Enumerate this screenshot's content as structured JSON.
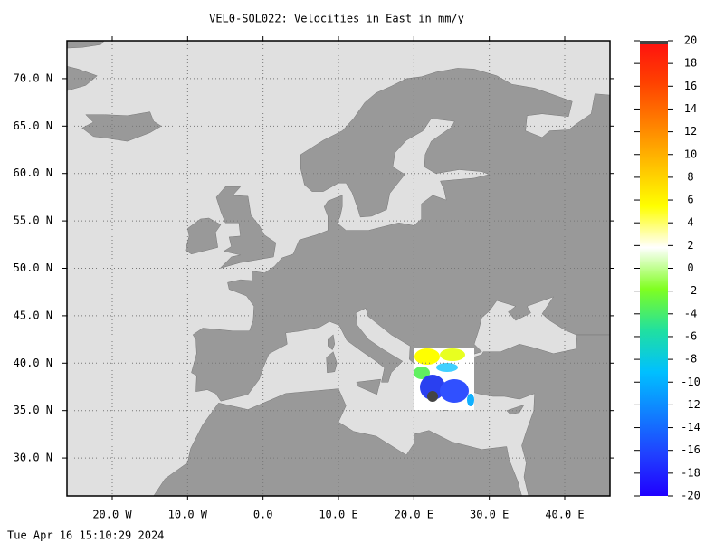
{
  "title": "VEL0-SOL022: Velocities in East in mm/y",
  "map": {
    "xlim": [
      -26,
      46
    ],
    "ylim": [
      26,
      74
    ],
    "xticks": [
      {
        "value": -20,
        "label": "20.0 W"
      },
      {
        "value": -10,
        "label": "10.0 W"
      },
      {
        "value": 0,
        "label": "0.0"
      },
      {
        "value": 10,
        "label": "10.0 E"
      },
      {
        "value": 20,
        "label": "20.0 E"
      },
      {
        "value": 30,
        "label": "30.0 E"
      },
      {
        "value": 40,
        "label": "40.0 E"
      }
    ],
    "yticks": [
      {
        "value": 30,
        "label": "30.0 N"
      },
      {
        "value": 35,
        "label": "35.0 N"
      },
      {
        "value": 40,
        "label": "40.0 N"
      },
      {
        "value": 45,
        "label": "45.0 N"
      },
      {
        "value": 50,
        "label": "50.0 N"
      },
      {
        "value": 55,
        "label": "55.0 N"
      },
      {
        "value": 60,
        "label": "60.0 N"
      },
      {
        "value": 65,
        "label": "65.0 N"
      },
      {
        "value": 70,
        "label": "70.0 N"
      }
    ],
    "grid": true,
    "land_color": "#999999",
    "sea_color": "#e0e0e0"
  },
  "colorbar": {
    "range": [
      -20,
      20
    ],
    "ticks": [
      20,
      18,
      16,
      14,
      12,
      10,
      8,
      6,
      4,
      2,
      0,
      -2,
      -4,
      -6,
      -8,
      -10,
      -12,
      -14,
      -16,
      -18,
      -20
    ],
    "colors": [
      "#2000ff",
      "#2040ff",
      "#1080ff",
      "#00c0ff",
      "#20e0a0",
      "#80ff20",
      "#ffffff",
      "#ffff00",
      "#ffc000",
      "#ff8000",
      "#ff4000",
      "#ff1010"
    ]
  },
  "timestamp": "Tue Apr 16 15:10:29 2024"
}
